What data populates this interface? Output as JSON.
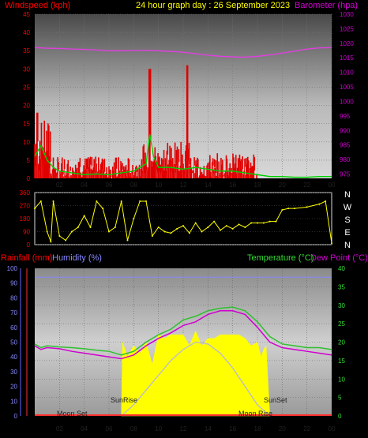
{
  "header": {
    "title": "24 hour graph day : 26 September 2023",
    "left_axis_label": "Windspeed (kph)",
    "right_axis_label": "Barometer (hpa)"
  },
  "compass": [
    "N",
    "W",
    "S",
    "E",
    "N"
  ],
  "bottom_labels": {
    "rainfall": "Rainfall (mm)",
    "humidity": "Humidity (%)",
    "temperature": "Temperature (°C)",
    "dewpoint": "Dew Point (°C)",
    "sunrise": "SunRise",
    "sunset": "SunSet",
    "moonset": "Moon Set",
    "moonrise": "Moon Rise"
  },
  "colors": {
    "wind": "#e00000",
    "gust": "#ffffff",
    "avg_wind": "#00d000",
    "barometer": "#e040e0",
    "direction": "#ffff00",
    "temperature": "#30c030",
    "dewpoint": "#d000d0",
    "humidity": "#8888ff",
    "solar": "#ffff00",
    "uv": "#c0c0c0"
  },
  "chart_data": [
    {
      "type": "line",
      "title": "24 hour graph day : 26 September 2023",
      "ylabel": "Windspeed (kph)",
      "y2label": "Barometer (hpa)",
      "x_ticks": [
        "02",
        "04",
        "06",
        "08",
        "10",
        "12",
        "14",
        "16",
        "18",
        "20",
        "22",
        "00"
      ],
      "xlim": [
        0,
        24
      ],
      "ylim": [
        0,
        45
      ],
      "y_ticks": [
        0,
        5,
        10,
        15,
        20,
        25,
        30,
        35,
        40,
        45
      ],
      "y2lim": [
        973.5,
        1030
      ],
      "y2_ticks": [
        975,
        980,
        985,
        990,
        995,
        1000,
        1005,
        1010,
        1015,
        1020,
        1025,
        1030
      ],
      "series": [
        {
          "name": "",
          "role": "barometer",
          "x": [
            0,
            1,
            2,
            3,
            4,
            5,
            6,
            7,
            8,
            9,
            10,
            11,
            12,
            13,
            14,
            15,
            16,
            17,
            18,
            19,
            20,
            21,
            22,
            23,
            24
          ],
          "y": [
            1018.5,
            1018.3,
            1018.2,
            1018,
            1017.9,
            1017.7,
            1017.4,
            1017.4,
            1017.5,
            1017.6,
            1017.4,
            1017.2,
            1016.9,
            1016.4,
            1015.9,
            1015.5,
            1015.3,
            1015.2,
            1015.5,
            1016,
            1016.6,
            1017.3,
            1018,
            1018.4,
            1018.5
          ]
        },
        {
          "name": "",
          "role": "avg_wind",
          "x": [
            0,
            0.5,
            1,
            1.5,
            2,
            3,
            4,
            5,
            6,
            7,
            8,
            8.5,
            9,
            9.3,
            9.6,
            10,
            11,
            12,
            13,
            14,
            15,
            16,
            17,
            18,
            19,
            20,
            21,
            22,
            23,
            24
          ],
          "y": [
            6,
            9,
            5,
            3,
            2,
            1.5,
            1,
            1.2,
            1,
            1.5,
            2,
            3,
            4,
            12,
            6,
            3,
            3,
            2.5,
            3,
            2.5,
            2,
            2,
            1.5,
            1,
            0.5,
            0.5,
            0.3,
            0.3,
            0.5,
            0.5
          ]
        }
      ]
    },
    {
      "type": "scatter",
      "ylabel": "",
      "xlim": [
        0,
        24
      ],
      "ylim": [
        0,
        360
      ],
      "y_ticks": [
        0,
        90,
        180,
        270,
        360
      ],
      "x": [
        0,
        0.5,
        1,
        1.3,
        1.5,
        2,
        2.5,
        3,
        3.5,
        4,
        4.5,
        5,
        5.5,
        6,
        6.5,
        7,
        7.5,
        8,
        8.5,
        9,
        9.5,
        10,
        10.5,
        11,
        11.5,
        12,
        12.5,
        13,
        13.5,
        14,
        14.5,
        15,
        15.5,
        16,
        16.5,
        17,
        17.5,
        18,
        18.5,
        19,
        19.5,
        20,
        20.5,
        21,
        22,
        23,
        23.5,
        24
      ],
      "y": [
        250,
        300,
        90,
        20,
        300,
        60,
        30,
        90,
        120,
        200,
        120,
        300,
        250,
        90,
        120,
        300,
        30,
        180,
        300,
        300,
        60,
        120,
        90,
        80,
        110,
        130,
        80,
        150,
        90,
        120,
        160,
        100,
        130,
        110,
        140,
        120,
        150,
        150,
        150,
        160,
        160,
        240,
        250,
        250,
        260,
        280,
        300,
        10
      ]
    },
    {
      "type": "line",
      "ylabel": "Humidity (%)",
      "y2label": "Temperature (°C)",
      "x_ticks": [
        "02",
        "04",
        "06",
        "08",
        "10",
        "12",
        "14",
        "16",
        "18",
        "20",
        "22",
        "00"
      ],
      "xlim": [
        0,
        24
      ],
      "ylim": [
        0,
        100
      ],
      "y_ticks": [
        0,
        10,
        20,
        30,
        40,
        50,
        60,
        70,
        80,
        90,
        100
      ],
      "y2lim": [
        0,
        40
      ],
      "y2_ticks": [
        0,
        5,
        10,
        15,
        20,
        25,
        30,
        35,
        40
      ],
      "series": [
        {
          "name": "Temperature (°C)",
          "role": "temperature",
          "x": [
            0,
            0.5,
            1,
            2,
            3,
            4,
            5,
            6,
            7,
            7.5,
            8,
            9,
            10,
            11,
            12,
            13,
            14,
            15,
            16,
            17,
            18,
            19,
            20,
            21,
            22,
            23,
            24
          ],
          "y": [
            19.5,
            18.5,
            19,
            18.7,
            18.5,
            18.2,
            17.8,
            17.5,
            16.5,
            17,
            17.5,
            20,
            22,
            23.5,
            26,
            27,
            28.5,
            29.2,
            29.5,
            28.5,
            25.5,
            21.5,
            19.5,
            19,
            18.5,
            18.5,
            18
          ]
        },
        {
          "name": "Dew Point (°C)",
          "role": "dewpoint",
          "x": [
            0,
            0.5,
            1,
            2,
            3,
            4,
            5,
            6,
            7,
            7.5,
            8,
            9,
            10,
            11,
            12,
            13,
            14,
            15,
            16,
            17,
            18,
            19,
            20,
            21,
            22,
            23,
            24
          ],
          "y": [
            19,
            18,
            18.5,
            18.2,
            17.5,
            17,
            16.5,
            16,
            15.5,
            16,
            16.5,
            19,
            21,
            22.5,
            24.5,
            25.5,
            27.5,
            28.5,
            28.5,
            27.5,
            24,
            20,
            18.5,
            18,
            17.5,
            17,
            16.5
          ]
        },
        {
          "name": "Humidity (%)",
          "role": "humidity",
          "x": [
            0,
            24
          ],
          "y": [
            94,
            94
          ]
        },
        {
          "name": "",
          "role": "solar",
          "x": [
            7,
            7.1,
            7.5,
            8,
            8.5,
            9,
            9.5,
            10,
            10.5,
            11,
            11.5,
            12,
            12.5,
            13,
            13.5,
            14,
            14.5,
            15,
            15.5,
            16,
            16.5,
            17,
            17.5,
            18,
            18.3,
            18.5,
            18.7,
            19
          ],
          "y": [
            0,
            20,
            16,
            19,
            17,
            20,
            14,
            22,
            21,
            22,
            22,
            22,
            19,
            23,
            19,
            21,
            21,
            22,
            22,
            22,
            22,
            21,
            19,
            20,
            16,
            18,
            19,
            0
          ]
        },
        {
          "name": "",
          "role": "uv",
          "x": [
            7,
            8,
            9,
            10,
            11,
            12,
            13,
            14,
            15,
            16,
            17,
            18,
            19
          ],
          "y": [
            0,
            3,
            7,
            11,
            15,
            18,
            20,
            19.5,
            17,
            13,
            8,
            3,
            0
          ]
        }
      ]
    }
  ]
}
